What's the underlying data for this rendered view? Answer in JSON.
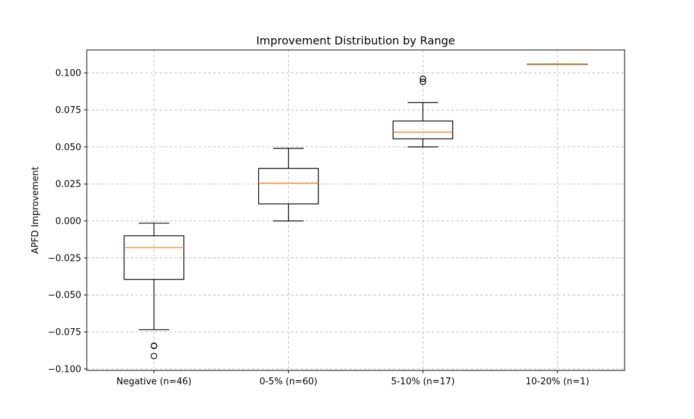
{
  "chart_data": {
    "type": "box",
    "title": "Improvement Distribution by Range",
    "xlabel": "",
    "ylabel": "APFD Improvement",
    "ylim": [
      -0.101,
      0.1155
    ],
    "grid": true,
    "yticks": [
      -0.1,
      -0.075,
      -0.05,
      -0.025,
      0.0,
      0.025,
      0.05,
      0.075,
      0.1
    ],
    "ytick_labels": [
      "−0.100",
      "−0.075",
      "−0.050",
      "−0.025",
      "0.000",
      "0.025",
      "0.050",
      "0.075",
      "0.100"
    ],
    "categories": [
      "Negative (n=46)",
      "0-5% (n=60)",
      "5-10% (n=17)",
      "10-20% (n=1)"
    ],
    "boxes": [
      {
        "whisker_low": -0.0735,
        "q1": -0.0395,
        "median": -0.018,
        "q3": -0.01,
        "whisker_high": -0.0015,
        "outliers": [
          -0.0843,
          -0.0845,
          -0.0913
        ]
      },
      {
        "whisker_low": 0.0,
        "q1": 0.0115,
        "median": 0.0255,
        "q3": 0.0355,
        "whisker_high": 0.049,
        "outliers": []
      },
      {
        "whisker_low": 0.05,
        "q1": 0.0555,
        "median": 0.06,
        "q3": 0.0675,
        "whisker_high": 0.08,
        "outliers": [
          0.094,
          0.096
        ]
      },
      {
        "whisker_low": 0.106,
        "q1": 0.106,
        "median": 0.106,
        "q3": 0.106,
        "whisker_high": 0.106,
        "outliers": []
      }
    ],
    "colors": {
      "box": "#000000",
      "median": "#ff7f0e",
      "grid": "#b0b0b0"
    }
  }
}
